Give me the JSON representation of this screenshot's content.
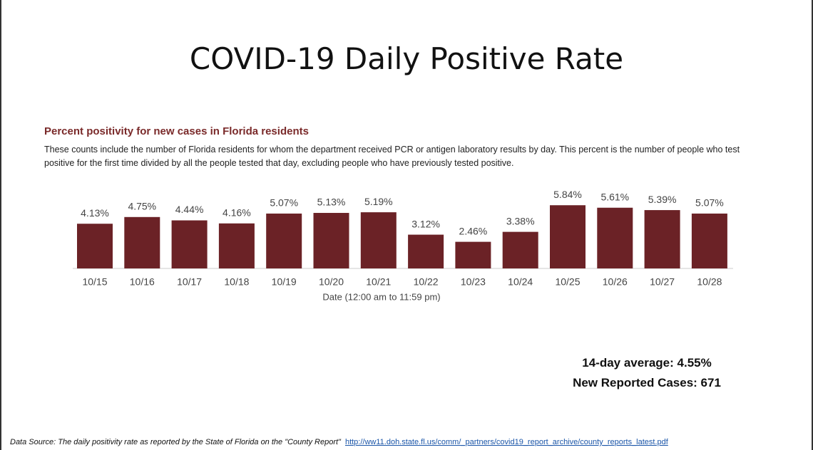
{
  "title": "COVID-19 Daily Positive Rate",
  "chart_data": {
    "type": "bar",
    "title": "Percent positivity for new cases in Florida residents",
    "subtitle": "These counts include the number of Florida residents for whom the department received PCR or antigen laboratory results by day. This percent is the number of people who test positive for the first time divided by all the people tested that day, excluding people who have previously tested positive.",
    "x_label": "Date (12:00 am to 11:59 pm)",
    "categories": [
      "10/15",
      "10/16",
      "10/17",
      "10/18",
      "10/19",
      "10/20",
      "10/21",
      "10/22",
      "10/23",
      "10/24",
      "10/25",
      "10/26",
      "10/27",
      "10/28"
    ],
    "values": [
      4.13,
      4.75,
      4.44,
      4.16,
      5.07,
      5.13,
      5.19,
      3.12,
      2.46,
      3.38,
      5.84,
      5.61,
      5.39,
      5.07
    ],
    "value_labels": [
      "4.13%",
      "4.75%",
      "4.44%",
      "4.16%",
      "5.07%",
      "5.13%",
      "5.19%",
      "3.12%",
      "2.46%",
      "3.38%",
      "5.84%",
      "5.61%",
      "5.39%",
      "5.07%"
    ],
    "color": "#6b2226"
  },
  "summary": [
    "14-day average: 4.55%",
    "New Reported Cases: 671"
  ],
  "source": {
    "text": "Data Source: The daily positivity rate as reported by the State of Florida on the \"County Report\"",
    "link": "http://ww11.doh.state.fl.us/comm/_partners/covid19_report_archive/county_reports_latest.pdf"
  }
}
